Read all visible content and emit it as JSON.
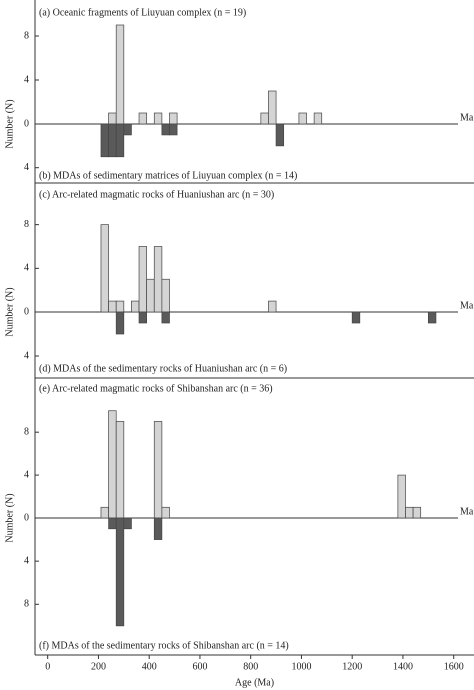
{
  "chart_data": [
    {
      "type": "histogram",
      "ylabel": "Number (N)",
      "x_unit_label": "Ma",
      "xlim": [
        -50,
        1680
      ],
      "bins": [
        210,
        240,
        270,
        300,
        330,
        360,
        390,
        420,
        450,
        480,
        510,
        540,
        570,
        600,
        630,
        660,
        690,
        720,
        750,
        780,
        810,
        840,
        870,
        900,
        930,
        960,
        990,
        1020,
        1050,
        1080,
        1110,
        1140,
        1170,
        1200,
        1230,
        1260,
        1290,
        1320,
        1350,
        1380,
        1410,
        1440,
        1470,
        1500,
        1530
      ],
      "series": [
        {
          "name": "(a) Oceanic fragments of Liuyuan complex (n = 19)",
          "direction": "up",
          "color": "#d4d4d4",
          "ylim": [
            0,
            9
          ],
          "yticks": [
            0,
            4,
            8
          ],
          "values": [
            0,
            1,
            9,
            0,
            0,
            1,
            0,
            1,
            0,
            1,
            0,
            0,
            0,
            0,
            0,
            0,
            0,
            0,
            0,
            0,
            0,
            1,
            3,
            0,
            0,
            0,
            1,
            0,
            1,
            0,
            0,
            0,
            0,
            0,
            0,
            0,
            0,
            0,
            0,
            0,
            0,
            0,
            0,
            0
          ]
        },
        {
          "name": "(b) MDAs of sedimentary matrices of Liuyuan complex (n = 14)",
          "direction": "down",
          "color": "#5a5a5a",
          "ylim": [
            0,
            5.4
          ],
          "yticks": [
            4
          ],
          "values": [
            3,
            3,
            3,
            1,
            0,
            0,
            0,
            0,
            1,
            1,
            0,
            0,
            0,
            0,
            0,
            0,
            0,
            0,
            0,
            0,
            0,
            0,
            0,
            2,
            0,
            0,
            0,
            0,
            0,
            0,
            0,
            0,
            0,
            0,
            0,
            0,
            0,
            0,
            0,
            0,
            0,
            0,
            0,
            0
          ]
        }
      ]
    },
    {
      "type": "histogram",
      "ylabel": "Number (N)",
      "x_unit_label": "Ma",
      "xlim": [
        -50,
        1680
      ],
      "bins": [
        210,
        240,
        270,
        300,
        330,
        360,
        390,
        420,
        450,
        480,
        510,
        540,
        570,
        600,
        630,
        660,
        690,
        720,
        750,
        780,
        810,
        840,
        870,
        900,
        930,
        960,
        990,
        1020,
        1050,
        1080,
        1110,
        1140,
        1170,
        1200,
        1230,
        1260,
        1290,
        1320,
        1350,
        1380,
        1410,
        1440,
        1470,
        1500,
        1530
      ],
      "series": [
        {
          "name": "(c) Arc-related magmatic rocks of Huaniushan arc (n = 30)",
          "direction": "up",
          "color": "#d4d4d4",
          "ylim": [
            0,
            9.8
          ],
          "yticks": [
            0,
            4,
            8
          ],
          "values": [
            8,
            1,
            1,
            0,
            1,
            6,
            3,
            6,
            3,
            0,
            0,
            0,
            0,
            0,
            0,
            0,
            0,
            0,
            0,
            0,
            0,
            0,
            1,
            0,
            0,
            0,
            0,
            0,
            0,
            0,
            0,
            0,
            0,
            0,
            0,
            0,
            0,
            0,
            0,
            0,
            0,
            0,
            0,
            0
          ]
        },
        {
          "name": "(d) MDAs of the sedimentary rocks of Huaniushan arc (n = 6)",
          "direction": "down",
          "color": "#5a5a5a",
          "ylim": [
            0,
            6
          ],
          "yticks": [
            4
          ],
          "values": [
            0,
            0,
            2,
            0,
            0,
            1,
            0,
            0,
            1,
            0,
            0,
            0,
            0,
            0,
            0,
            0,
            0,
            0,
            0,
            0,
            0,
            0,
            0,
            0,
            0,
            0,
            0,
            0,
            0,
            0,
            0,
            0,
            0,
            1,
            0,
            0,
            0,
            0,
            0,
            0,
            0,
            0,
            0,
            1
          ]
        }
      ]
    },
    {
      "type": "histogram",
      "ylabel": "Number (N)",
      "x_unit_label": "Ma",
      "xlabel": "Age (Ma)",
      "xlim": [
        -50,
        1680
      ],
      "xticks": [
        0,
        200,
        400,
        600,
        800,
        1000,
        1200,
        1400,
        1600
      ],
      "bins": [
        210,
        240,
        270,
        300,
        330,
        360,
        390,
        420,
        450,
        480,
        510,
        540,
        570,
        600,
        630,
        660,
        690,
        720,
        750,
        780,
        810,
        840,
        870,
        900,
        930,
        960,
        990,
        1020,
        1050,
        1080,
        1110,
        1140,
        1170,
        1200,
        1230,
        1260,
        1290,
        1320,
        1350,
        1380,
        1410,
        1440,
        1470,
        1500,
        1530
      ],
      "series": [
        {
          "name": "(e) Arc-related magmatic rocks of Shibanshan arc (n = 36)",
          "direction": "up",
          "color": "#d4d4d4",
          "ylim": [
            0,
            11
          ],
          "yticks": [
            0,
            4,
            8
          ],
          "values": [
            1,
            10,
            9,
            0,
            0,
            0,
            0,
            9,
            1,
            0,
            0,
            0,
            0,
            0,
            0,
            0,
            0,
            0,
            0,
            0,
            0,
            0,
            0,
            0,
            0,
            0,
            0,
            0,
            0,
            0,
            0,
            0,
            0,
            0,
            0,
            0,
            0,
            0,
            0,
            4,
            1,
            1,
            0,
            0
          ]
        },
        {
          "name": "(f) MDAs of the sedimentary rocks of Shibanshan arc (n = 14)",
          "direction": "down",
          "color": "#5a5a5a",
          "ylim": [
            0,
            12.7
          ],
          "yticks": [
            4,
            8
          ],
          "values": [
            0,
            1,
            10,
            1,
            0,
            0,
            0,
            2,
            0,
            0,
            0,
            0,
            0,
            0,
            0,
            0,
            0,
            0,
            0,
            0,
            0,
            0,
            0,
            0,
            0,
            0,
            0,
            0,
            0,
            0,
            0,
            0,
            0,
            0,
            0,
            0,
            0,
            0,
            0,
            0,
            0,
            0,
            0,
            0
          ]
        }
      ]
    }
  ]
}
